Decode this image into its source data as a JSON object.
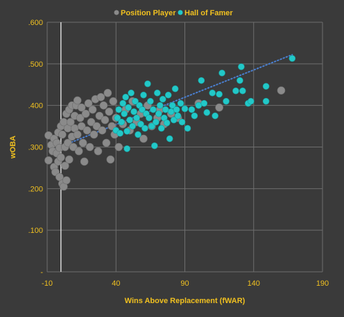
{
  "chart_data": {
    "type": "scatter",
    "xlabel": "Wins Above Replacement (fWAR)",
    "ylabel": "wOBA",
    "xlim": [
      -10,
      190
    ],
    "ylim": [
      0,
      0.6
    ],
    "x_ticks": [
      -10,
      40,
      90,
      140,
      190
    ],
    "x_tick_labels": [
      "-10",
      "40",
      "90",
      "140",
      "190"
    ],
    "y_ticks": [
      0,
      0.1,
      0.2,
      0.3,
      0.4,
      0.5,
      0.6
    ],
    "y_tick_labels": [
      "-",
      ".100",
      ".200",
      ".300",
      ".400",
      ".500",
      ".600"
    ],
    "reference_line_x": 0,
    "grid": true,
    "legend_position": "top",
    "series": [
      {
        "name": "Position Player",
        "color": "#8a8a8a",
        "points": [
          [
            -9,
            0.328
          ],
          [
            -9,
            0.268
          ],
          [
            -7,
            0.305
          ],
          [
            -6,
            0.29
          ],
          [
            -5,
            0.252
          ],
          [
            -5,
            0.32
          ],
          [
            -4,
            0.24
          ],
          [
            -3,
            0.285
          ],
          [
            -3,
            0.31
          ],
          [
            -2,
            0.335
          ],
          [
            -2,
            0.265
          ],
          [
            -1,
            0.228
          ],
          [
            -1,
            0.298
          ],
          [
            0,
            0.35
          ],
          [
            0,
            0.275
          ],
          [
            1,
            0.212
          ],
          [
            1,
            0.33
          ],
          [
            2,
            0.205
          ],
          [
            2,
            0.36
          ],
          [
            3,
            0.255
          ],
          [
            3,
            0.3
          ],
          [
            4,
            0.38
          ],
          [
            4,
            0.22
          ],
          [
            5,
            0.31
          ],
          [
            5,
            0.345
          ],
          [
            6,
            0.27
          ],
          [
            6,
            0.39
          ],
          [
            7,
            0.36
          ],
          [
            8,
            0.325
          ],
          [
            8,
            0.4
          ],
          [
            9,
            0.3
          ],
          [
            10,
            0.345
          ],
          [
            10,
            0.375
          ],
          [
            11,
            0.4
          ],
          [
            12,
            0.33
          ],
          [
            12,
            0.412
          ],
          [
            13,
            0.29
          ],
          [
            14,
            0.37
          ],
          [
            15,
            0.35
          ],
          [
            15,
            0.395
          ],
          [
            16,
            0.31
          ],
          [
            17,
            0.265
          ],
          [
            18,
            0.38
          ],
          [
            19,
            0.34
          ],
          [
            20,
            0.405
          ],
          [
            21,
            0.3
          ],
          [
            22,
            0.36
          ],
          [
            23,
            0.39
          ],
          [
            24,
            0.33
          ],
          [
            25,
            0.415
          ],
          [
            26,
            0.35
          ],
          [
            27,
            0.29
          ],
          [
            28,
            0.375
          ],
          [
            29,
            0.42
          ],
          [
            30,
            0.34
          ],
          [
            31,
            0.4
          ],
          [
            32,
            0.365
          ],
          [
            33,
            0.31
          ],
          [
            34,
            0.43
          ],
          [
            35,
            0.385
          ],
          [
            36,
            0.27
          ],
          [
            37,
            0.35
          ],
          [
            38,
            0.41
          ],
          [
            39,
            0.33
          ],
          [
            40,
            0.37
          ],
          [
            42,
            0.3
          ],
          [
            45,
            0.355
          ],
          [
            47,
            0.39
          ],
          [
            50,
            0.34
          ],
          [
            52,
            0.41
          ],
          [
            55,
            0.36
          ],
          [
            58,
            0.38
          ],
          [
            60,
            0.32
          ],
          [
            63,
            0.4
          ],
          [
            66,
            0.35
          ],
          [
            70,
            0.37
          ],
          [
            72,
            0.39
          ],
          [
            75,
            0.355
          ],
          [
            80,
            0.38
          ],
          [
            85,
            0.37
          ],
          [
            100,
            0.405
          ],
          [
            115,
            0.395
          ],
          [
            160,
            0.436
          ]
        ]
      },
      {
        "name": "Hall of Famer",
        "color": "#22c8c8",
        "points": [
          [
            40,
            0.34
          ],
          [
            41,
            0.37
          ],
          [
            42,
            0.39
          ],
          [
            43,
            0.333
          ],
          [
            44,
            0.36
          ],
          [
            45,
            0.405
          ],
          [
            46,
            0.38
          ],
          [
            47,
            0.42
          ],
          [
            48,
            0.296
          ],
          [
            48,
            0.338
          ],
          [
            49,
            0.395
          ],
          [
            50,
            0.365
          ],
          [
            51,
            0.43
          ],
          [
            52,
            0.35
          ],
          [
            53,
            0.385
          ],
          [
            54,
            0.41
          ],
          [
            55,
            0.37
          ],
          [
            56,
            0.33
          ],
          [
            57,
            0.4
          ],
          [
            58,
            0.355
          ],
          [
            59,
            0.39
          ],
          [
            60,
            0.425
          ],
          [
            61,
            0.345
          ],
          [
            62,
            0.38
          ],
          [
            63,
            0.452
          ],
          [
            64,
            0.37
          ],
          [
            65,
            0.41
          ],
          [
            66,
            0.35
          ],
          [
            67,
            0.39
          ],
          [
            68,
            0.303
          ],
          [
            69,
            0.36
          ],
          [
            70,
            0.43
          ],
          [
            71,
            0.38
          ],
          [
            72,
            0.4
          ],
          [
            73,
            0.345
          ],
          [
            74,
            0.415
          ],
          [
            75,
            0.37
          ],
          [
            76,
            0.39
          ],
          [
            77,
            0.358
          ],
          [
            78,
            0.425
          ],
          [
            79,
            0.32
          ],
          [
            80,
            0.385
          ],
          [
            81,
            0.4
          ],
          [
            82,
            0.365
          ],
          [
            83,
            0.44
          ],
          [
            84,
            0.39
          ],
          [
            85,
            0.375
          ],
          [
            87,
            0.405
          ],
          [
            88,
            0.36
          ],
          [
            90,
            0.392
          ],
          [
            92,
            0.345
          ],
          [
            95,
            0.39
          ],
          [
            97,
            0.375
          ],
          [
            100,
            0.4
          ],
          [
            102,
            0.46
          ],
          [
            104,
            0.405
          ],
          [
            106,
            0.383
          ],
          [
            110,
            0.43
          ],
          [
            112,
            0.375
          ],
          [
            115,
            0.427
          ],
          [
            117,
            0.478
          ],
          [
            120,
            0.41
          ],
          [
            127,
            0.435
          ],
          [
            130,
            0.46
          ],
          [
            131,
            0.493
          ],
          [
            132,
            0.435
          ],
          [
            136,
            0.405
          ],
          [
            138,
            0.41
          ],
          [
            149,
            0.446
          ],
          [
            149,
            0.41
          ],
          [
            168,
            0.513
          ]
        ]
      }
    ],
    "trendline": {
      "x": [
        -5,
        168
      ],
      "y": [
        0.295,
        0.522
      ],
      "color": "#4a7fd0",
      "style": "dotted"
    }
  }
}
